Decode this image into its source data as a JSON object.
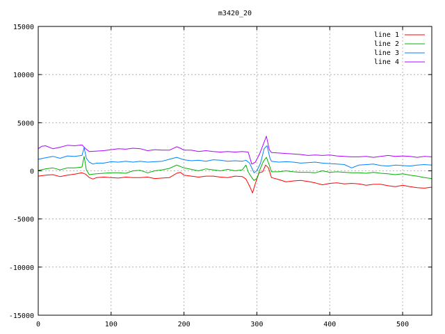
{
  "chart_data": {
    "type": "line",
    "title": "m3420_20",
    "xlabel": "",
    "ylabel": "",
    "xlim": [
      0,
      540
    ],
    "ylim": [
      -15000,
      15000
    ],
    "xticks": [
      0,
      100,
      200,
      300,
      400,
      500
    ],
    "yticks": [
      -15000,
      -10000,
      -5000,
      0,
      5000,
      10000,
      15000
    ],
    "grid": true,
    "legend_position": "top-right",
    "series": [
      {
        "name": "line 1",
        "color": "#ff0000",
        "points": [
          [
            0,
            -550
          ],
          [
            10,
            -450
          ],
          [
            20,
            -400
          ],
          [
            30,
            -600
          ],
          [
            40,
            -450
          ],
          [
            50,
            -350
          ],
          [
            60,
            -200
          ],
          [
            65,
            -350
          ],
          [
            70,
            -700
          ],
          [
            75,
            -850
          ],
          [
            80,
            -700
          ],
          [
            90,
            -650
          ],
          [
            100,
            -700
          ],
          [
            110,
            -750
          ],
          [
            120,
            -650
          ],
          [
            130,
            -700
          ],
          [
            140,
            -700
          ],
          [
            150,
            -650
          ],
          [
            160,
            -800
          ],
          [
            170,
            -750
          ],
          [
            180,
            -700
          ],
          [
            190,
            -250
          ],
          [
            195,
            -150
          ],
          [
            200,
            -450
          ],
          [
            210,
            -550
          ],
          [
            220,
            -650
          ],
          [
            230,
            -550
          ],
          [
            240,
            -550
          ],
          [
            250,
            -650
          ],
          [
            260,
            -700
          ],
          [
            270,
            -550
          ],
          [
            280,
            -600
          ],
          [
            285,
            -850
          ],
          [
            290,
            -1600
          ],
          [
            294,
            -2300
          ],
          [
            298,
            -1300
          ],
          [
            303,
            -200
          ],
          [
            308,
            -100
          ],
          [
            312,
            600
          ],
          [
            316,
            300
          ],
          [
            320,
            -700
          ],
          [
            330,
            -900
          ],
          [
            340,
            -1150
          ],
          [
            350,
            -1050
          ],
          [
            360,
            -1000
          ],
          [
            370,
            -1100
          ],
          [
            380,
            -1250
          ],
          [
            390,
            -1450
          ],
          [
            400,
            -1300
          ],
          [
            410,
            -1250
          ],
          [
            420,
            -1350
          ],
          [
            430,
            -1300
          ],
          [
            440,
            -1350
          ],
          [
            450,
            -1500
          ],
          [
            460,
            -1400
          ],
          [
            470,
            -1400
          ],
          [
            480,
            -1550
          ],
          [
            490,
            -1650
          ],
          [
            500,
            -1500
          ],
          [
            510,
            -1650
          ],
          [
            520,
            -1750
          ],
          [
            530,
            -1800
          ],
          [
            540,
            -1700
          ]
        ]
      },
      {
        "name": "line 2",
        "color": "#00b000",
        "points": [
          [
            0,
            50
          ],
          [
            10,
            200
          ],
          [
            20,
            300
          ],
          [
            30,
            100
          ],
          [
            40,
            300
          ],
          [
            50,
            300
          ],
          [
            55,
            350
          ],
          [
            60,
            400
          ],
          [
            63,
            1500
          ],
          [
            66,
            100
          ],
          [
            70,
            -400
          ],
          [
            75,
            -350
          ],
          [
            80,
            -300
          ],
          [
            90,
            -250
          ],
          [
            100,
            -200
          ],
          [
            110,
            -200
          ],
          [
            120,
            -250
          ],
          [
            130,
            0
          ],
          [
            140,
            50
          ],
          [
            150,
            -200
          ],
          [
            160,
            0
          ],
          [
            170,
            100
          ],
          [
            180,
            250
          ],
          [
            190,
            600
          ],
          [
            200,
            300
          ],
          [
            210,
            150
          ],
          [
            220,
            0
          ],
          [
            230,
            200
          ],
          [
            240,
            100
          ],
          [
            250,
            0
          ],
          [
            260,
            150
          ],
          [
            270,
            0
          ],
          [
            280,
            100
          ],
          [
            285,
            600
          ],
          [
            288,
            -100
          ],
          [
            292,
            -600
          ],
          [
            296,
            -1000
          ],
          [
            300,
            -800
          ],
          [
            305,
            300
          ],
          [
            309,
            1000
          ],
          [
            313,
            1400
          ],
          [
            317,
            600
          ],
          [
            320,
            -100
          ],
          [
            330,
            -100
          ],
          [
            340,
            0
          ],
          [
            350,
            -100
          ],
          [
            360,
            -150
          ],
          [
            370,
            -150
          ],
          [
            380,
            -200
          ],
          [
            390,
            0
          ],
          [
            400,
            -150
          ],
          [
            410,
            -100
          ],
          [
            420,
            -150
          ],
          [
            430,
            -200
          ],
          [
            440,
            -200
          ],
          [
            450,
            -250
          ],
          [
            460,
            -150
          ],
          [
            470,
            -250
          ],
          [
            480,
            -300
          ],
          [
            490,
            -400
          ],
          [
            500,
            -300
          ],
          [
            510,
            -450
          ],
          [
            520,
            -550
          ],
          [
            530,
            -700
          ],
          [
            540,
            -800
          ]
        ]
      },
      {
        "name": "line 3",
        "color": "#0080ff",
        "points": [
          [
            0,
            1200
          ],
          [
            10,
            1350
          ],
          [
            20,
            1500
          ],
          [
            30,
            1300
          ],
          [
            40,
            1550
          ],
          [
            50,
            1500
          ],
          [
            60,
            1600
          ],
          [
            63,
            2400
          ],
          [
            66,
            1300
          ],
          [
            70,
            900
          ],
          [
            75,
            700
          ],
          [
            80,
            800
          ],
          [
            90,
            800
          ],
          [
            100,
            950
          ],
          [
            110,
            900
          ],
          [
            120,
            1000
          ],
          [
            130,
            900
          ],
          [
            140,
            1000
          ],
          [
            150,
            900
          ],
          [
            160,
            950
          ],
          [
            170,
            1000
          ],
          [
            180,
            1200
          ],
          [
            190,
            1400
          ],
          [
            200,
            1150
          ],
          [
            210,
            1050
          ],
          [
            220,
            1100
          ],
          [
            230,
            1000
          ],
          [
            240,
            1150
          ],
          [
            250,
            1100
          ],
          [
            260,
            1000
          ],
          [
            270,
            1050
          ],
          [
            280,
            1000
          ],
          [
            285,
            1100
          ],
          [
            290,
            800
          ],
          [
            296,
            -200
          ],
          [
            300,
            0
          ],
          [
            305,
            800
          ],
          [
            310,
            2300
          ],
          [
            314,
            2600
          ],
          [
            318,
            1300
          ],
          [
            320,
            1000
          ],
          [
            330,
            900
          ],
          [
            340,
            950
          ],
          [
            350,
            900
          ],
          [
            360,
            800
          ],
          [
            370,
            850
          ],
          [
            380,
            900
          ],
          [
            390,
            800
          ],
          [
            400,
            750
          ],
          [
            410,
            700
          ],
          [
            420,
            650
          ],
          [
            430,
            300
          ],
          [
            440,
            600
          ],
          [
            450,
            650
          ],
          [
            460,
            700
          ],
          [
            470,
            550
          ],
          [
            480,
            500
          ],
          [
            490,
            600
          ],
          [
            500,
            550
          ],
          [
            510,
            500
          ],
          [
            520,
            600
          ],
          [
            530,
            650
          ],
          [
            540,
            600
          ]
        ]
      },
      {
        "name": "line 4",
        "color": "#b000ff",
        "points": [
          [
            0,
            2300
          ],
          [
            5,
            2550
          ],
          [
            10,
            2600
          ],
          [
            20,
            2300
          ],
          [
            30,
            2450
          ],
          [
            40,
            2650
          ],
          [
            50,
            2600
          ],
          [
            60,
            2700
          ],
          [
            65,
            2300
          ],
          [
            70,
            2000
          ],
          [
            80,
            2050
          ],
          [
            90,
            2100
          ],
          [
            100,
            2200
          ],
          [
            110,
            2300
          ],
          [
            120,
            2250
          ],
          [
            130,
            2350
          ],
          [
            140,
            2300
          ],
          [
            150,
            2100
          ],
          [
            160,
            2200
          ],
          [
            170,
            2150
          ],
          [
            180,
            2150
          ],
          [
            190,
            2500
          ],
          [
            195,
            2350
          ],
          [
            200,
            2150
          ],
          [
            210,
            2150
          ],
          [
            220,
            2000
          ],
          [
            230,
            2100
          ],
          [
            240,
            2000
          ],
          [
            250,
            1950
          ],
          [
            260,
            2000
          ],
          [
            270,
            1950
          ],
          [
            280,
            2000
          ],
          [
            288,
            1950
          ],
          [
            293,
            700
          ],
          [
            298,
            900
          ],
          [
            304,
            1800
          ],
          [
            309,
            2800
          ],
          [
            313,
            3600
          ],
          [
            317,
            2200
          ],
          [
            320,
            1900
          ],
          [
            330,
            1850
          ],
          [
            340,
            1800
          ],
          [
            350,
            1750
          ],
          [
            360,
            1700
          ],
          [
            370,
            1600
          ],
          [
            380,
            1650
          ],
          [
            390,
            1600
          ],
          [
            400,
            1650
          ],
          [
            410,
            1550
          ],
          [
            420,
            1500
          ],
          [
            430,
            1450
          ],
          [
            440,
            1450
          ],
          [
            450,
            1500
          ],
          [
            460,
            1400
          ],
          [
            470,
            1500
          ],
          [
            480,
            1600
          ],
          [
            490,
            1500
          ],
          [
            500,
            1550
          ],
          [
            510,
            1500
          ],
          [
            520,
            1400
          ],
          [
            530,
            1500
          ],
          [
            540,
            1450
          ]
        ]
      }
    ]
  }
}
